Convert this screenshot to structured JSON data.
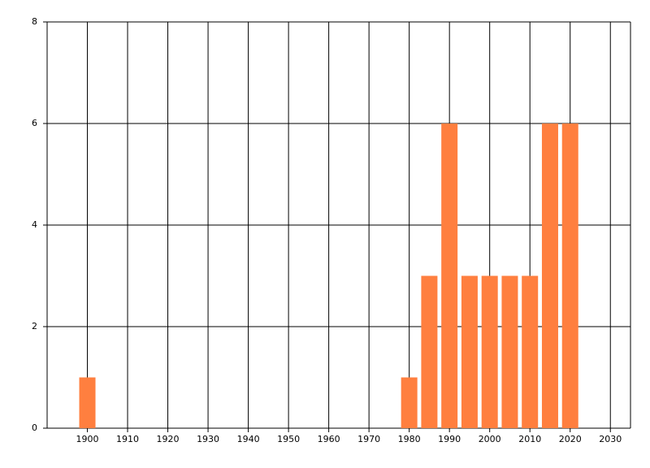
{
  "chart_data": {
    "type": "bar",
    "x": [
      1900,
      1980,
      1985,
      1990,
      1995,
      2000,
      2005,
      2010,
      2015,
      2020
    ],
    "values": [
      1,
      1,
      3,
      6,
      3,
      3,
      3,
      3,
      6,
      6
    ],
    "color": "#ff7f3f",
    "xlim": [
      1890,
      2035
    ],
    "xticks": [
      1900,
      1910,
      1920,
      1930,
      1940,
      1950,
      1960,
      1970,
      1980,
      1990,
      2000,
      2010,
      2020,
      2030
    ],
    "ylim": [
      0,
      8
    ],
    "yticks": [
      0,
      2,
      4,
      6,
      8
    ],
    "grid": true
  }
}
